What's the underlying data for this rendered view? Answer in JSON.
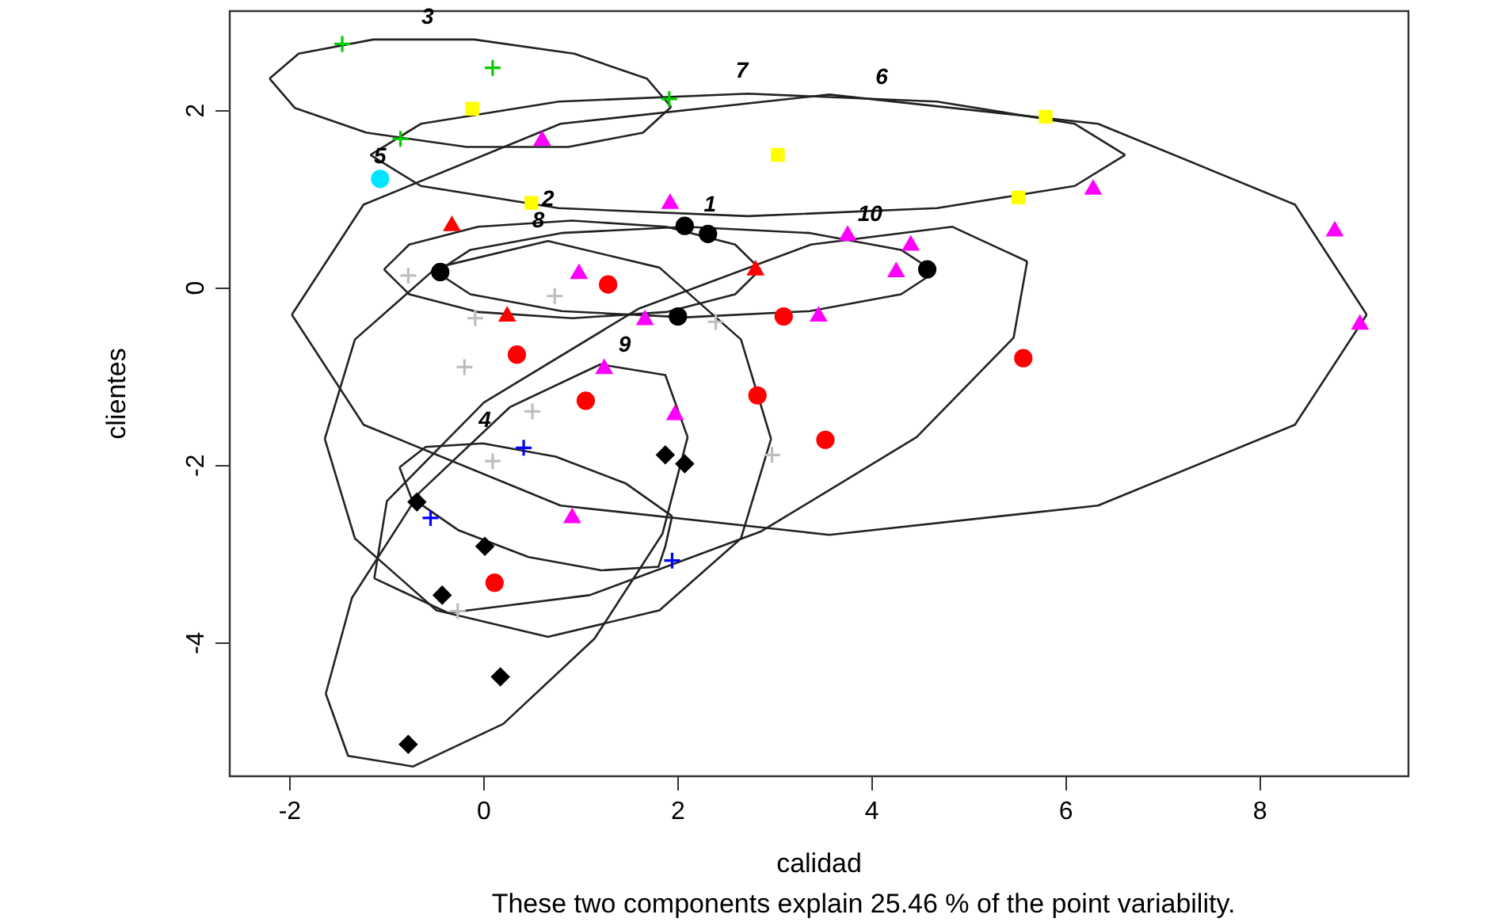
{
  "chart_data": {
    "type": "scatter",
    "xlabel": "calidad",
    "ylabel": "clientes",
    "xlim": [
      -2.62,
      9.53
    ],
    "xticks": [
      -2,
      0,
      2,
      4,
      6,
      8
    ],
    "ylim": [
      -5.5,
      3.12
    ],
    "yticks": [
      -4,
      -2,
      0,
      2
    ],
    "grid": false,
    "annotations": [
      {
        "text": "3",
        "x": -0.58,
        "y": 2.8
      },
      {
        "text": "7",
        "x": 2.66,
        "y": 2.19
      },
      {
        "text": "6",
        "x": 4.1,
        "y": 2.12
      },
      {
        "text": "5",
        "x": -1.07,
        "y": 1.23
      },
      {
        "text": "2",
        "x": 0.66,
        "y": 0.74
      },
      {
        "text": "1",
        "x": 2.33,
        "y": 0.68
      },
      {
        "text": "8",
        "x": 0.56,
        "y": 0.5
      },
      {
        "text": "10",
        "x": 3.98,
        "y": 0.57
      },
      {
        "text": "9",
        "x": 1.45,
        "y": -0.9
      },
      {
        "text": "4",
        "x": 0.01,
        "y": -1.75
      },
      "These two components explain 25.46 % of the point variability."
    ],
    "series": [
      {
        "color": "#000000",
        "marker": "circle",
        "x": [
          -0.45,
          2.07,
          2.31,
          4.57,
          2.0
        ],
        "values": [
          0.18,
          0.7,
          0.61,
          0.21,
          -0.32
        ]
      },
      {
        "color": "#ff0000",
        "marker": "triangle",
        "x": [
          -0.33,
          0.24,
          2.8
        ],
        "values": [
          0.7,
          -0.32,
          0.2
        ]
      },
      {
        "color": "#00cc00",
        "marker": "cross",
        "x": [
          -1.46,
          0.09,
          1.91,
          -0.86
        ],
        "values": [
          2.75,
          2.48,
          2.13,
          1.68
        ]
      },
      {
        "color": "#0000ff",
        "marker": "cross",
        "x": [
          0.41,
          -0.55,
          1.94
        ],
        "values": [
          -1.8,
          -2.59,
          -3.07
        ]
      },
      {
        "color": "#00e5ff",
        "marker": "circle",
        "x": [
          -1.07
        ],
        "values": [
          1.23
        ]
      },
      {
        "color": "#ffff00",
        "marker": "square",
        "x": [
          -0.12,
          3.03,
          5.79,
          5.51,
          0.49
        ],
        "values": [
          2.02,
          1.5,
          1.93,
          1.02,
          0.96
        ]
      },
      {
        "color": "#ff00ff",
        "marker": "triangle",
        "x": [
          0.6,
          1.92,
          6.28,
          8.77,
          9.03,
          3.75,
          4.4,
          4.25,
          3.45,
          0.98,
          1.66,
          1.24,
          1.97,
          0.91
        ],
        "values": [
          1.66,
          0.95,
          1.11,
          0.64,
          -0.41,
          0.59,
          0.48,
          0.18,
          -0.32,
          0.16,
          -0.36,
          -0.91,
          -1.43,
          -2.59
        ]
      },
      {
        "color": "#bebebe",
        "marker": "cross",
        "x": [
          -0.78,
          0.73,
          -0.09,
          2.39,
          -0.2,
          0.5,
          0.09,
          2.97,
          -0.27
        ],
        "values": [
          0.14,
          -0.09,
          -0.34,
          -0.38,
          -0.89,
          -1.39,
          -1.95,
          -1.88,
          -3.64
        ]
      },
      {
        "color": "#000000",
        "marker": "diamond",
        "x": [
          1.87,
          2.07,
          -0.69,
          0.01,
          -0.43,
          0.17,
          -0.78
        ],
        "values": [
          -1.88,
          -1.98,
          -2.41,
          -2.91,
          -3.46,
          -4.38,
          -5.14
        ]
      },
      {
        "color": "#ff0000",
        "marker": "circle",
        "x": [
          1.28,
          3.09,
          0.34,
          5.56,
          1.05,
          2.82,
          3.52,
          0.11
        ],
        "values": [
          0.04,
          -0.32,
          -0.75,
          -0.79,
          -1.27,
          -1.21,
          -1.71,
          -3.32
        ]
      },
      {
        "type": "line",
        "color": "#222222",
        "marker": "none",
        "x": [
          -0.49,
          -0.14,
          0.8,
          2.08,
          3.36,
          4.3,
          4.65
        ],
        "values": [
          0.18,
          0.43,
          0.62,
          0.69,
          0.62,
          0.43,
          0.18
        ]
      },
      {
        "type": "line",
        "color": "#222222",
        "marker": "none",
        "x": [
          -0.49,
          -0.14,
          0.8,
          2.08,
          3.36,
          4.3,
          4.65
        ],
        "values": [
          0.18,
          -0.07,
          -0.26,
          -0.33,
          -0.26,
          -0.07,
          0.18
        ]
      },
      {
        "type": "line",
        "color": "#222222",
        "marker": "none",
        "x": [
          -1.03,
          -0.77,
          -0.06,
          0.91,
          1.88,
          2.59,
          2.85
        ],
        "values": [
          0.21,
          0.49,
          0.69,
          0.76,
          0.69,
          0.49,
          0.21
        ]
      },
      {
        "type": "line",
        "color": "#222222",
        "marker": "none",
        "x": [
          -1.03,
          -0.77,
          -0.06,
          0.91,
          1.88,
          2.59,
          2.85
        ],
        "values": [
          0.21,
          -0.07,
          -0.27,
          -0.34,
          -0.27,
          -0.07,
          0.21
        ]
      },
      {
        "type": "line",
        "color": "#222222",
        "marker": "none",
        "x": [
          -2.21,
          -1.95,
          -1.21,
          -0.18,
          0.87,
          1.64,
          1.93
        ],
        "values": [
          2.36,
          2.03,
          1.75,
          1.59,
          1.59,
          1.75,
          2.04
        ]
      },
      {
        "type": "line",
        "color": "#222222",
        "marker": "none",
        "x": [
          -2.21,
          -1.91,
          -1.14,
          -0.1,
          0.93,
          1.68,
          1.93
        ],
        "values": [
          2.36,
          2.64,
          2.8,
          2.8,
          2.64,
          2.36,
          2.04
        ]
      },
      {
        "type": "line",
        "color": "#222222",
        "marker": "none",
        "x": [
          -0.87,
          -0.75,
          -0.26,
          0.46,
          1.21,
          1.8,
          1.87,
          1.94
        ],
        "values": [
          -2.02,
          -2.36,
          -2.73,
          -3.03,
          -3.18,
          -3.14,
          -2.91,
          -2.57
        ]
      },
      {
        "type": "line",
        "color": "#222222",
        "marker": "none",
        "x": [
          -0.87,
          -0.6,
          -0.01,
          0.74,
          1.46,
          1.94
        ],
        "values": [
          -2.02,
          -1.79,
          -1.75,
          -1.9,
          -2.2,
          -2.57
        ]
      },
      {
        "type": "line",
        "color": "#222222",
        "marker": "none",
        "x": [
          -1.17,
          -0.65,
          0.77,
          2.72,
          4.67,
          6.09,
          6.61
        ],
        "values": [
          1.5,
          1.85,
          2.1,
          2.19,
          2.1,
          1.85,
          1.5
        ]
      },
      {
        "type": "line",
        "color": "#222222",
        "marker": "none",
        "x": [
          -1.17,
          -0.65,
          0.77,
          2.72,
          4.67,
          6.09,
          6.61
        ],
        "values": [
          1.5,
          1.15,
          0.9,
          0.81,
          0.9,
          1.15,
          1.5
        ]
      },
      {
        "type": "line",
        "color": "#222222",
        "marker": "none",
        "x": [
          -1.98,
          -1.24,
          0.79,
          3.56,
          6.33,
          8.36,
          9.1
        ],
        "values": [
          -0.3,
          0.94,
          1.85,
          2.18,
          1.85,
          0.94,
          -0.3
        ]
      },
      {
        "type": "line",
        "color": "#222222",
        "marker": "none",
        "x": [
          -1.98,
          -1.24,
          0.79,
          3.56,
          6.33,
          8.36,
          9.1
        ],
        "values": [
          -0.3,
          -1.54,
          -2.45,
          -2.78,
          -2.45,
          -1.54,
          -0.3
        ]
      },
      {
        "type": "line",
        "color": "#222222",
        "marker": "none",
        "x": [
          -1.64,
          -1.33,
          -0.49,
          0.66,
          1.81,
          2.65,
          2.96
        ],
        "values": [
          -1.7,
          -0.58,
          0.23,
          0.53,
          0.23,
          -0.58,
          -1.7
        ]
      },
      {
        "type": "line",
        "color": "#222222",
        "marker": "none",
        "x": [
          -1.64,
          -1.33,
          -0.49,
          0.66,
          1.81,
          2.65,
          2.96
        ],
        "values": [
          -1.7,
          -2.82,
          -3.63,
          -3.93,
          -3.63,
          -2.82,
          -1.7
        ]
      },
      {
        "type": "line",
        "color": "#222222",
        "marker": "none",
        "x": [
          -1.63,
          -1.4,
          -0.73,
          0.2,
          1.14,
          1.84,
          2.1
        ],
        "values": [
          -4.57,
          -5.27,
          -5.39,
          -4.91,
          -3.95,
          -2.77,
          -1.68
        ]
      },
      {
        "type": "line",
        "color": "#222222",
        "marker": "none",
        "x": [
          -1.63,
          -1.36,
          -0.66,
          0.27,
          1.2,
          1.87,
          2.1
        ],
        "values": [
          -4.57,
          -3.49,
          -2.3,
          -1.34,
          -0.86,
          -0.98,
          -1.68
        ]
      },
      {
        "type": "line",
        "color": "#222222",
        "marker": "none",
        "x": [
          -1.13,
          -0.37,
          1.09,
          2.86,
          4.46,
          5.46,
          5.6
        ],
        "values": [
          -3.27,
          -3.66,
          -3.46,
          -2.74,
          -1.68,
          -0.56,
          0.3
        ]
      },
      {
        "type": "line",
        "color": "#222222",
        "marker": "none",
        "x": [
          -1.13,
          -1.0,
          0.0,
          1.6,
          3.37,
          4.83,
          5.6
        ],
        "values": [
          -3.27,
          -2.4,
          -1.29,
          -0.23,
          0.49,
          0.69,
          0.3
        ]
      }
    ]
  }
}
